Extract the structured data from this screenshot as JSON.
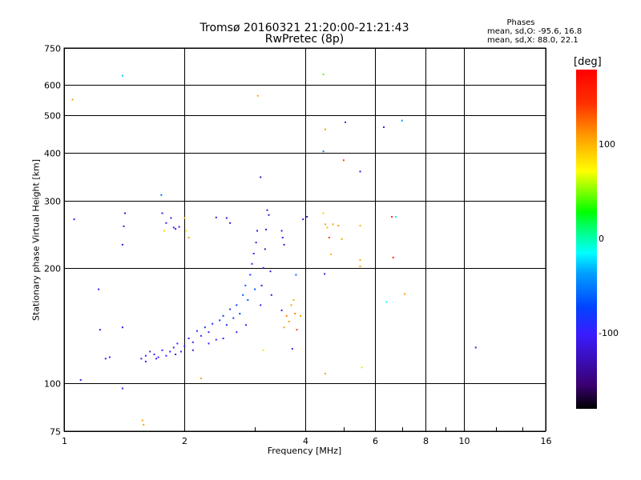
{
  "chart_data": {
    "type": "scatter",
    "title": "Tromsø 20160321 21:20:00-21:21:43",
    "subtitle": "RwPretec (8p)",
    "xlabel": "Frequency [MHz]",
    "ylabel": "Stationary phase Virtual Height [km]",
    "x_scale": "log",
    "y_scale": "log",
    "xlim": [
      1,
      16
    ],
    "ylim": [
      75,
      750
    ],
    "x_ticks": [
      "1",
      "2",
      "4",
      "6",
      "8",
      "10",
      "16"
    ],
    "x_tick_values": [
      1,
      2,
      4,
      6,
      8,
      10,
      16
    ],
    "y_ticks": [
      "750",
      "600",
      "500",
      "400",
      "300",
      "200",
      "100",
      "75"
    ],
    "y_tick_values": [
      750,
      600,
      500,
      400,
      300,
      200,
      100,
      75
    ],
    "grid": true,
    "stats": {
      "heading": "Phases",
      "line1": "mean, sd,O: -95.6, 16.8",
      "line2": "mean, sd,X:  88.0, 22.1"
    },
    "colorbar": {
      "label": "[deg]",
      "ticks": [
        "100",
        "0",
        "-100"
      ],
      "tick_values": [
        100,
        0,
        -100
      ],
      "range": [
        -180,
        180
      ]
    },
    "points": [
      {
        "x": 1.06,
        "y": 268,
        "phase": -110
      },
      {
        "x": 1.1,
        "y": 102,
        "phase": -110
      },
      {
        "x": 1.22,
        "y": 176,
        "phase": -110
      },
      {
        "x": 1.23,
        "y": 138,
        "phase": -110
      },
      {
        "x": 1.27,
        "y": 116,
        "phase": -100
      },
      {
        "x": 1.3,
        "y": 117,
        "phase": -100
      },
      {
        "x": 1.4,
        "y": 97,
        "phase": -110
      },
      {
        "x": 1.4,
        "y": 140,
        "phase": -110
      },
      {
        "x": 1.4,
        "y": 230,
        "phase": -115
      },
      {
        "x": 1.41,
        "y": 257,
        "phase": -115
      },
      {
        "x": 1.42,
        "y": 278,
        "phase": -115
      },
      {
        "x": 1.4,
        "y": 635,
        "phase": -30
      },
      {
        "x": 1.05,
        "y": 550,
        "phase": 110
      },
      {
        "x": 1.57,
        "y": 80,
        "phase": 110
      },
      {
        "x": 1.58,
        "y": 78,
        "phase": 110
      },
      {
        "x": 1.75,
        "y": 310,
        "phase": -60
      },
      {
        "x": 1.76,
        "y": 278,
        "phase": -110
      },
      {
        "x": 1.78,
        "y": 250,
        "phase": 90
      },
      {
        "x": 1.8,
        "y": 262,
        "phase": -100
      },
      {
        "x": 1.85,
        "y": 270,
        "phase": -110
      },
      {
        "x": 1.88,
        "y": 255,
        "phase": -110
      },
      {
        "x": 1.9,
        "y": 253,
        "phase": -110
      },
      {
        "x": 1.94,
        "y": 256,
        "phase": -110
      },
      {
        "x": 2.0,
        "y": 270,
        "phase": 100
      },
      {
        "x": 2.02,
        "y": 250,
        "phase": 80
      },
      {
        "x": 2.05,
        "y": 240,
        "phase": 110
      },
      {
        "x": 2.2,
        "y": 103,
        "phase": 110
      },
      {
        "x": 2.4,
        "y": 271,
        "phase": -110
      },
      {
        "x": 2.55,
        "y": 270,
        "phase": -115
      },
      {
        "x": 2.6,
        "y": 262,
        "phase": -115
      },
      {
        "x": 1.56,
        "y": 116,
        "phase": -100
      },
      {
        "x": 1.6,
        "y": 118,
        "phase": -100
      },
      {
        "x": 1.64,
        "y": 121,
        "phase": -100
      },
      {
        "x": 1.68,
        "y": 119,
        "phase": -100
      },
      {
        "x": 1.72,
        "y": 117,
        "phase": -100
      },
      {
        "x": 1.76,
        "y": 122,
        "phase": -100
      },
      {
        "x": 1.8,
        "y": 118,
        "phase": -100
      },
      {
        "x": 1.84,
        "y": 121,
        "phase": -100
      },
      {
        "x": 1.88,
        "y": 124,
        "phase": -100
      },
      {
        "x": 1.92,
        "y": 127,
        "phase": -95
      },
      {
        "x": 1.96,
        "y": 121,
        "phase": -100
      },
      {
        "x": 2.0,
        "y": 125,
        "phase": -100
      },
      {
        "x": 2.05,
        "y": 131,
        "phase": -95
      },
      {
        "x": 2.1,
        "y": 128,
        "phase": -95
      },
      {
        "x": 2.15,
        "y": 137,
        "phase": -90
      },
      {
        "x": 2.2,
        "y": 133,
        "phase": -95
      },
      {
        "x": 2.25,
        "y": 140,
        "phase": -90
      },
      {
        "x": 2.3,
        "y": 136,
        "phase": -95
      },
      {
        "x": 2.35,
        "y": 143,
        "phase": -90
      },
      {
        "x": 2.4,
        "y": 130,
        "phase": -95
      },
      {
        "x": 2.45,
        "y": 146,
        "phase": -85
      },
      {
        "x": 2.5,
        "y": 150,
        "phase": -85
      },
      {
        "x": 2.55,
        "y": 142,
        "phase": -90
      },
      {
        "x": 2.6,
        "y": 156,
        "phase": -80
      },
      {
        "x": 2.65,
        "y": 148,
        "phase": -85
      },
      {
        "x": 2.7,
        "y": 160,
        "phase": -80
      },
      {
        "x": 2.75,
        "y": 152,
        "phase": -80
      },
      {
        "x": 2.8,
        "y": 170,
        "phase": -70
      },
      {
        "x": 2.84,
        "y": 180,
        "phase": -65
      },
      {
        "x": 2.88,
        "y": 165,
        "phase": -70
      },
      {
        "x": 2.92,
        "y": 192,
        "phase": -85
      },
      {
        "x": 2.95,
        "y": 205,
        "phase": -100
      },
      {
        "x": 2.98,
        "y": 218,
        "phase": -105
      },
      {
        "x": 3.0,
        "y": 176,
        "phase": -75
      },
      {
        "x": 3.02,
        "y": 233,
        "phase": -110
      },
      {
        "x": 3.04,
        "y": 250,
        "phase": -115
      },
      {
        "x": 1.6,
        "y": 114,
        "phase": -105
      },
      {
        "x": 1.7,
        "y": 116,
        "phase": -105
      },
      {
        "x": 1.9,
        "y": 119,
        "phase": -105
      },
      {
        "x": 2.1,
        "y": 122,
        "phase": -105
      },
      {
        "x": 2.3,
        "y": 127,
        "phase": -100
      },
      {
        "x": 2.5,
        "y": 131,
        "phase": -100
      },
      {
        "x": 2.7,
        "y": 136,
        "phase": -95
      },
      {
        "x": 2.85,
        "y": 142,
        "phase": -90
      },
      {
        "x": 3.1,
        "y": 160,
        "phase": -110
      },
      {
        "x": 3.12,
        "y": 180,
        "phase": -115
      },
      {
        "x": 3.15,
        "y": 200,
        "phase": -115
      },
      {
        "x": 3.18,
        "y": 224,
        "phase": -118
      },
      {
        "x": 3.2,
        "y": 252,
        "phase": -118
      },
      {
        "x": 3.22,
        "y": 283,
        "phase": -120
      },
      {
        "x": 3.25,
        "y": 275,
        "phase": -120
      },
      {
        "x": 3.28,
        "y": 196,
        "phase": -115
      },
      {
        "x": 3.3,
        "y": 170,
        "phase": -110
      },
      {
        "x": 3.1,
        "y": 345,
        "phase": -130
      },
      {
        "x": 3.05,
        "y": 563,
        "phase": 110
      },
      {
        "x": 3.15,
        "y": 122,
        "phase": 80
      },
      {
        "x": 3.5,
        "y": 250,
        "phase": -110
      },
      {
        "x": 3.52,
        "y": 240,
        "phase": -110
      },
      {
        "x": 3.55,
        "y": 230,
        "phase": -110
      },
      {
        "x": 3.5,
        "y": 155,
        "phase": -105
      },
      {
        "x": 3.55,
        "y": 140,
        "phase": 110
      },
      {
        "x": 3.6,
        "y": 150,
        "phase": 120
      },
      {
        "x": 3.65,
        "y": 145,
        "phase": 115
      },
      {
        "x": 3.7,
        "y": 160,
        "phase": 110
      },
      {
        "x": 3.75,
        "y": 165,
        "phase": 105
      },
      {
        "x": 3.78,
        "y": 152,
        "phase": 120
      },
      {
        "x": 3.8,
        "y": 192,
        "phase": -60
      },
      {
        "x": 3.82,
        "y": 138,
        "phase": 140
      },
      {
        "x": 3.9,
        "y": 150,
        "phase": 110
      },
      {
        "x": 3.72,
        "y": 123,
        "phase": -110
      },
      {
        "x": 3.96,
        "y": 268,
        "phase": -110
      },
      {
        "x": 4.05,
        "y": 272,
        "phase": -110
      },
      {
        "x": 4.45,
        "y": 640,
        "phase": 40
      },
      {
        "x": 4.5,
        "y": 460,
        "phase": 110
      },
      {
        "x": 4.45,
        "y": 403,
        "phase": -60
      },
      {
        "x": 4.45,
        "y": 278,
        "phase": 90
      },
      {
        "x": 4.5,
        "y": 260,
        "phase": 110
      },
      {
        "x": 4.55,
        "y": 255,
        "phase": 100
      },
      {
        "x": 4.6,
        "y": 240,
        "phase": 140
      },
      {
        "x": 4.65,
        "y": 217,
        "phase": 100
      },
      {
        "x": 4.48,
        "y": 193,
        "phase": -110
      },
      {
        "x": 4.5,
        "y": 106,
        "phase": 110
      },
      {
        "x": 4.7,
        "y": 260,
        "phase": 110
      },
      {
        "x": 4.85,
        "y": 258,
        "phase": 110
      },
      {
        "x": 5.0,
        "y": 382,
        "phase": 140
      },
      {
        "x": 5.05,
        "y": 480,
        "phase": -100
      },
      {
        "x": 4.95,
        "y": 238,
        "phase": 110
      },
      {
        "x": 5.5,
        "y": 357,
        "phase": -110
      },
      {
        "x": 5.5,
        "y": 258,
        "phase": 100
      },
      {
        "x": 5.5,
        "y": 210,
        "phase": 110
      },
      {
        "x": 5.5,
        "y": 202,
        "phase": 110
      },
      {
        "x": 5.55,
        "y": 110,
        "phase": 60
      },
      {
        "x": 6.3,
        "y": 466,
        "phase": -100
      },
      {
        "x": 6.4,
        "y": 163,
        "phase": -10
      },
      {
        "x": 6.6,
        "y": 272,
        "phase": 150
      },
      {
        "x": 6.65,
        "y": 213,
        "phase": 150
      },
      {
        "x": 6.75,
        "y": 272,
        "phase": -20
      },
      {
        "x": 7.0,
        "y": 485,
        "phase": -40
      },
      {
        "x": 7.1,
        "y": 171,
        "phase": 110
      },
      {
        "x": 10.7,
        "y": 124,
        "phase": -110
      }
    ]
  }
}
